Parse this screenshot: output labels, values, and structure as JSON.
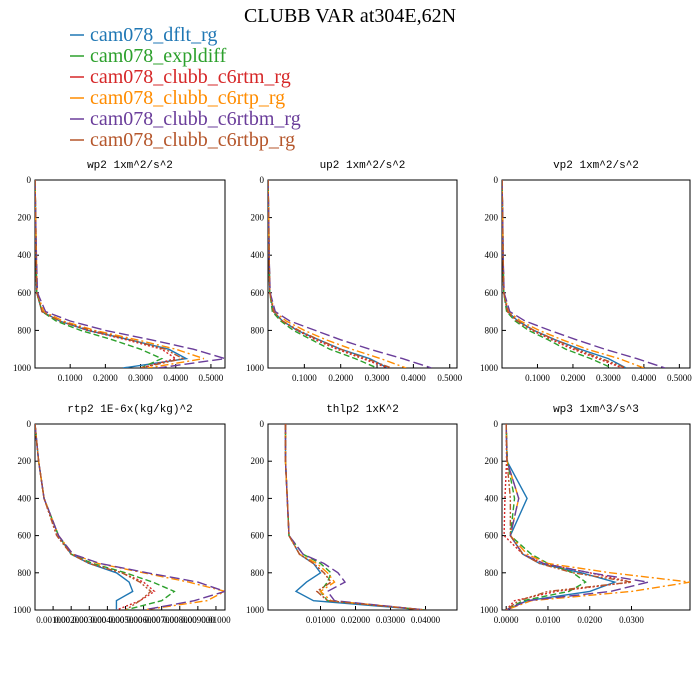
{
  "title": "CLUBB VAR at304E,62N",
  "legend": [
    {
      "name": "cam078_dflt_rg",
      "color": "#1f77b4",
      "dash": "solid"
    },
    {
      "name": "cam078_expldiff",
      "color": "#2ca02c",
      "dash": "dash"
    },
    {
      "name": "cam078_clubb_c6rtm_rg",
      "color": "#d62728",
      "dash": "dot"
    },
    {
      "name": "cam078_clubb_c6rtp_rg",
      "color": "#ff8c00",
      "dash": "dashdot"
    },
    {
      "name": "cam078_clubb_c6rtbm_rg",
      "color": "#6a3d9a",
      "dash": "longdash"
    },
    {
      "name": "cam078_clubb_c6rtbp_rg",
      "color": "#b5562b",
      "dash": "dashdotdot"
    }
  ],
  "chart_data": [
    {
      "type": "line",
      "title": "wp2  1xm^2/s^2",
      "y": [
        0,
        200,
        400,
        600,
        700,
        750,
        800,
        850,
        900,
        950,
        1000
      ],
      "ylim": [
        1000,
        0
      ],
      "yticks": [
        0,
        200,
        400,
        600,
        800,
        1000
      ],
      "xlim": [
        0,
        0.54
      ],
      "xticks": [
        {
          "value": 0.1,
          "label": "0.1000"
        },
        {
          "value": 0.2,
          "label": "0.2000"
        },
        {
          "value": 0.3,
          "label": "0.3000"
        },
        {
          "value": 0.4,
          "label": "0.4000"
        },
        {
          "value": 0.5,
          "label": "0.5000"
        }
      ],
      "series": [
        {
          "values": [
            0,
            0.002,
            0.003,
            0.005,
            0.02,
            0.07,
            0.15,
            0.27,
            0.38,
            0.43,
            0.25
          ]
        },
        {
          "values": [
            0,
            0.002,
            0.003,
            0.005,
            0.02,
            0.06,
            0.13,
            0.22,
            0.3,
            0.36,
            0.3
          ]
        },
        {
          "values": [
            0,
            0.002,
            0.003,
            0.005,
            0.02,
            0.07,
            0.15,
            0.26,
            0.36,
            0.4,
            0.3
          ]
        },
        {
          "values": [
            0,
            0.002,
            0.004,
            0.006,
            0.025,
            0.08,
            0.17,
            0.29,
            0.4,
            0.48,
            0.32
          ]
        },
        {
          "values": [
            0,
            0.002,
            0.004,
            0.007,
            0.03,
            0.1,
            0.2,
            0.33,
            0.45,
            0.54,
            0.35
          ]
        },
        {
          "values": [
            0,
            0.002,
            0.003,
            0.005,
            0.02,
            0.07,
            0.16,
            0.27,
            0.37,
            0.42,
            0.3
          ]
        }
      ]
    },
    {
      "type": "line",
      "title": "up2  1xm^2/s^2",
      "y": [
        0,
        200,
        400,
        600,
        700,
        750,
        800,
        850,
        900,
        950,
        1000
      ],
      "ylim": [
        1000,
        0
      ],
      "yticks": [
        0,
        200,
        400,
        600,
        800,
        1000
      ],
      "xlim": [
        0,
        0.52
      ],
      "xticks": [
        {
          "value": 0.1,
          "label": "0.1000"
        },
        {
          "value": 0.2,
          "label": "0.2000"
        },
        {
          "value": 0.3,
          "label": "0.3000"
        },
        {
          "value": 0.4,
          "label": "0.4000"
        },
        {
          "value": 0.5,
          "label": "0.5000"
        }
      ],
      "series": [
        {
          "values": [
            0,
            0.002,
            0.003,
            0.005,
            0.015,
            0.04,
            0.08,
            0.14,
            0.2,
            0.28,
            0.33
          ]
        },
        {
          "values": [
            0,
            0.002,
            0.003,
            0.005,
            0.012,
            0.035,
            0.07,
            0.12,
            0.17,
            0.24,
            0.3
          ]
        },
        {
          "values": [
            0,
            0.002,
            0.003,
            0.005,
            0.015,
            0.04,
            0.08,
            0.13,
            0.19,
            0.26,
            0.33
          ]
        },
        {
          "values": [
            0,
            0.002,
            0.003,
            0.005,
            0.018,
            0.05,
            0.1,
            0.16,
            0.23,
            0.31,
            0.38
          ]
        },
        {
          "values": [
            0,
            0.002,
            0.003,
            0.006,
            0.02,
            0.06,
            0.13,
            0.2,
            0.28,
            0.37,
            0.45
          ]
        },
        {
          "values": [
            0,
            0.002,
            0.003,
            0.005,
            0.015,
            0.04,
            0.085,
            0.14,
            0.2,
            0.27,
            0.34
          ]
        }
      ]
    },
    {
      "type": "line",
      "title": "vp2  1xm^2/s^2",
      "y": [
        0,
        200,
        400,
        600,
        700,
        750,
        800,
        850,
        900,
        950,
        1000
      ],
      "ylim": [
        1000,
        0
      ],
      "yticks": [
        0,
        200,
        400,
        600,
        800,
        1000
      ],
      "xlim": [
        0,
        0.53
      ],
      "xticks": [
        {
          "value": 0.1,
          "label": "0.1000"
        },
        {
          "value": 0.2,
          "label": "0.2000"
        },
        {
          "value": 0.3,
          "label": "0.3000"
        },
        {
          "value": 0.4,
          "label": "0.4000"
        },
        {
          "value": 0.5,
          "label": "0.5000"
        }
      ],
      "series": [
        {
          "values": [
            0,
            0.002,
            0.003,
            0.005,
            0.016,
            0.045,
            0.09,
            0.15,
            0.22,
            0.3,
            0.35
          ]
        },
        {
          "values": [
            0,
            0.002,
            0.003,
            0.005,
            0.013,
            0.037,
            0.075,
            0.13,
            0.18,
            0.25,
            0.31
          ]
        },
        {
          "values": [
            0,
            0.002,
            0.003,
            0.005,
            0.015,
            0.042,
            0.085,
            0.14,
            0.2,
            0.27,
            0.34
          ]
        },
        {
          "values": [
            0,
            0.002,
            0.003,
            0.005,
            0.019,
            0.052,
            0.105,
            0.17,
            0.24,
            0.33,
            0.4
          ]
        },
        {
          "values": [
            0,
            0.002,
            0.003,
            0.006,
            0.022,
            0.065,
            0.135,
            0.21,
            0.29,
            0.38,
            0.46
          ]
        },
        {
          "values": [
            0,
            0.002,
            0.003,
            0.005,
            0.016,
            0.044,
            0.09,
            0.15,
            0.21,
            0.28,
            0.35
          ]
        }
      ]
    },
    {
      "type": "line",
      "title": "rtp2  1E-6x(kg/kg)^2",
      "y": [
        0,
        200,
        400,
        600,
        700,
        750,
        800,
        850,
        900,
        950,
        1000
      ],
      "ylim": [
        1000,
        0
      ],
      "yticks": [
        0,
        200,
        400,
        600,
        800,
        1000
      ],
      "xlim": [
        0,
        0.0105
      ],
      "xticks": [
        {
          "value": 0.001,
          "label": "0.001000"
        },
        {
          "value": 0.002,
          "label": "0.002000"
        },
        {
          "value": 0.003,
          "label": "0.003000"
        },
        {
          "value": 0.004,
          "label": "0.004000"
        },
        {
          "value": 0.005,
          "label": "0.005000"
        },
        {
          "value": 0.006,
          "label": "0.006000"
        },
        {
          "value": 0.007,
          "label": "0.007000"
        },
        {
          "value": 0.008,
          "label": "0.008000"
        },
        {
          "value": 0.009,
          "label": "0.009000"
        },
        {
          "value": 0.01,
          "label": "0.01000"
        }
      ],
      "series": [
        {
          "values": [
            0,
            0.0002,
            0.0005,
            0.0013,
            0.002,
            0.003,
            0.0045,
            0.0052,
            0.0054,
            0.0045,
            0.0045
          ]
        },
        {
          "values": [
            0,
            0.0002,
            0.0005,
            0.0013,
            0.002,
            0.0032,
            0.005,
            0.0065,
            0.0077,
            0.007,
            0.005
          ]
        },
        {
          "values": [
            0,
            0.0002,
            0.0005,
            0.0012,
            0.002,
            0.003,
            0.0048,
            0.006,
            0.0066,
            0.0058,
            0.0045
          ]
        },
        {
          "values": [
            0,
            0.0002,
            0.0005,
            0.0013,
            0.0021,
            0.0035,
            0.006,
            0.0085,
            0.0105,
            0.0095,
            0.006
          ]
        },
        {
          "values": [
            0,
            0.0002,
            0.0005,
            0.0013,
            0.0021,
            0.0036,
            0.0062,
            0.009,
            0.0105,
            0.0088,
            0.006
          ]
        },
        {
          "values": [
            0,
            0.0002,
            0.0005,
            0.0012,
            0.002,
            0.003,
            0.0048,
            0.0058,
            0.0064,
            0.0058,
            0.005
          ]
        }
      ]
    },
    {
      "type": "line",
      "title": "thlp2  1xK^2",
      "y": [
        0,
        200,
        400,
        600,
        700,
        750,
        800,
        850,
        900,
        950,
        1000
      ],
      "ylim": [
        1000,
        0
      ],
      "yticks": [
        0,
        200,
        400,
        600,
        800,
        1000
      ],
      "xlim": [
        -0.005,
        0.049
      ],
      "xticks": [
        {
          "value": 0.01,
          "label": "0.01000"
        },
        {
          "value": 0.02,
          "label": "0.02000"
        },
        {
          "value": 0.03,
          "label": "0.03000"
        },
        {
          "value": 0.04,
          "label": "0.04000"
        }
      ],
      "series": [
        {
          "values": [
            0,
            0,
            0.0005,
            0.001,
            0.004,
            0.008,
            0.01,
            0.006,
            0.003,
            0.008,
            0.04
          ]
        },
        {
          "values": [
            0,
            0,
            0.0005,
            0.001,
            0.005,
            0.01,
            0.013,
            0.012,
            0.01,
            0.012,
            0.04
          ]
        },
        {
          "values": [
            0,
            0,
            0.0005,
            0.001,
            0.004,
            0.008,
            0.011,
            0.013,
            0.009,
            0.012,
            0.04
          ]
        },
        {
          "values": [
            0,
            0,
            0.0005,
            0.001,
            0.004,
            0.009,
            0.012,
            0.014,
            0.01,
            0.013,
            0.04
          ]
        },
        {
          "values": [
            0,
            0,
            0.0005,
            0.001,
            0.005,
            0.011,
            0.015,
            0.017,
            0.012,
            0.014,
            0.04
          ]
        },
        {
          "values": [
            0,
            0,
            0.0005,
            0.001,
            0.004,
            0.008,
            0.011,
            0.013,
            0.009,
            0.012,
            0.04
          ]
        }
      ]
    },
    {
      "type": "line",
      "title": "wp3  1xm^3/s^3",
      "y": [
        0,
        200,
        400,
        600,
        700,
        750,
        800,
        850,
        900,
        950,
        1000
      ],
      "ylim": [
        1000,
        0
      ],
      "yticks": [
        0,
        200,
        400,
        600,
        800,
        1000
      ],
      "xlim": [
        -0.001,
        0.044
      ],
      "xticks": [
        {
          "value": 0,
          "label": "0.0000"
        },
        {
          "value": 0.01,
          "label": "0.0100"
        },
        {
          "value": 0.02,
          "label": "0.0200"
        },
        {
          "value": 0.03,
          "label": "0.0300"
        }
      ],
      "series": [
        {
          "values": [
            0,
            0.0002,
            0.005,
            0.001,
            0.004,
            0.008,
            0.018,
            0.026,
            0.02,
            0.005,
            0
          ]
        },
        {
          "values": [
            0,
            0.0003,
            0.002,
            0.001,
            0.006,
            0.01,
            0.016,
            0.019,
            0.015,
            0.004,
            0
          ]
        },
        {
          "values": [
            0,
            0.0001,
            -0.0003,
            -0.0005,
            0.004,
            0.009,
            0.02,
            0.03,
            0.012,
            0.002,
            0
          ]
        },
        {
          "values": [
            0,
            0.0002,
            0.003,
            0.001,
            0.005,
            0.01,
            0.025,
            0.044,
            0.03,
            0.006,
            0
          ]
        },
        {
          "values": [
            0,
            0.0002,
            0.003,
            0.001,
            0.004,
            0.009,
            0.02,
            0.034,
            0.025,
            0.005,
            0
          ]
        },
        {
          "values": [
            0,
            0.0002,
            0.001,
            0.001,
            0.004,
            0.008,
            0.016,
            0.03,
            0.01,
            0.003,
            0
          ]
        }
      ]
    }
  ]
}
